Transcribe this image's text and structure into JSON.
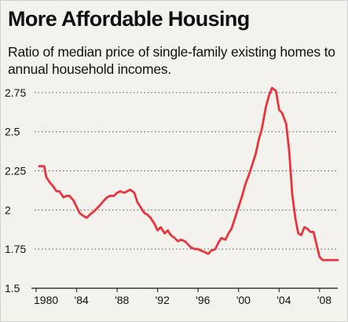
{
  "title": "More Affordable Housing",
  "subtitle": "Ratio of median price of single-family existing homes to annual household incomes.",
  "chart_data": {
    "type": "line",
    "title": "More Affordable Housing",
    "subtitle": "Ratio of median price of single-family existing homes to annual household incomes.",
    "xlabel": "",
    "ylabel": "",
    "xlim": [
      1980,
      2009.8
    ],
    "ylim": [
      1.5,
      2.85
    ],
    "grid": "horizontal-dotted",
    "line_color": "#e8343f",
    "y_ticks": [
      {
        "value": 1.5,
        "label": "1.5"
      },
      {
        "value": 1.75,
        "label": "1.75"
      },
      {
        "value": 2,
        "label": "2"
      },
      {
        "value": 2.25,
        "label": "2.25"
      },
      {
        "value": 2.5,
        "label": "2.5"
      },
      {
        "value": 2.75,
        "label": "2.75"
      }
    ],
    "x_ticks": [
      {
        "value": 1980,
        "label": "1980"
      },
      {
        "value": 1984,
        "label": "'84"
      },
      {
        "value": 1988,
        "label": "'88"
      },
      {
        "value": 1992,
        "label": "'92"
      },
      {
        "value": 1996,
        "label": "'96"
      },
      {
        "value": 2000,
        "label": "'00"
      },
      {
        "value": 2004,
        "label": "'04"
      },
      {
        "value": 2008,
        "label": "'08"
      }
    ],
    "x": [
      1980.3,
      1980.8,
      1981.0,
      1981.3,
      1981.7,
      1982.0,
      1982.3,
      1982.7,
      1983.0,
      1983.3,
      1983.7,
      1984.0,
      1984.3,
      1984.7,
      1985.0,
      1985.3,
      1985.7,
      1986.0,
      1986.3,
      1986.7,
      1987.0,
      1987.3,
      1987.7,
      1988.0,
      1988.3,
      1988.7,
      1989.0,
      1989.3,
      1989.7,
      1990.0,
      1990.3,
      1990.7,
      1991.0,
      1991.3,
      1991.7,
      1992.0,
      1992.3,
      1992.7,
      1993.0,
      1993.3,
      1993.7,
      1994.0,
      1994.3,
      1994.7,
      1995.0,
      1995.3,
      1995.7,
      1996.0,
      1996.3,
      1996.7,
      1997.0,
      1997.3,
      1997.7,
      1998.0,
      1998.3,
      1998.7,
      1999.0,
      1999.3,
      1999.7,
      2000.0,
      2000.3,
      2000.7,
      2001.0,
      2001.3,
      2001.7,
      2002.0,
      2002.3,
      2002.7,
      2003.0,
      2003.3,
      2003.7,
      2004.0,
      2004.3,
      2004.7,
      2005.0,
      2005.3,
      2005.6,
      2005.9,
      2006.2,
      2006.5,
      2006.8,
      2007.1,
      2007.4,
      2007.7,
      2008.0,
      2008.3,
      2008.6,
      2008.9,
      2009.2,
      2009.5,
      2009.8
    ],
    "y": [
      2.28,
      2.28,
      2.21,
      2.18,
      2.15,
      2.12,
      2.12,
      2.08,
      2.09,
      2.09,
      2.06,
      2.02,
      1.98,
      1.96,
      1.95,
      1.97,
      1.99,
      2.01,
      2.03,
      2.06,
      2.08,
      2.09,
      2.09,
      2.11,
      2.12,
      2.11,
      2.12,
      2.13,
      2.11,
      2.05,
      2.02,
      1.98,
      1.97,
      1.95,
      1.91,
      1.87,
      1.89,
      1.85,
      1.87,
      1.84,
      1.82,
      1.8,
      1.81,
      1.8,
      1.78,
      1.76,
      1.75,
      1.75,
      1.74,
      1.73,
      1.72,
      1.74,
      1.75,
      1.79,
      1.82,
      1.81,
      1.85,
      1.88,
      1.96,
      2.02,
      2.08,
      2.17,
      2.22,
      2.28,
      2.36,
      2.45,
      2.52,
      2.66,
      2.73,
      2.78,
      2.76,
      2.64,
      2.62,
      2.55,
      2.38,
      2.1,
      1.95,
      1.85,
      1.84,
      1.89,
      1.88,
      1.86,
      1.86,
      1.78,
      1.7,
      1.68,
      1.68,
      1.68,
      1.68,
      1.68,
      1.68
    ]
  }
}
